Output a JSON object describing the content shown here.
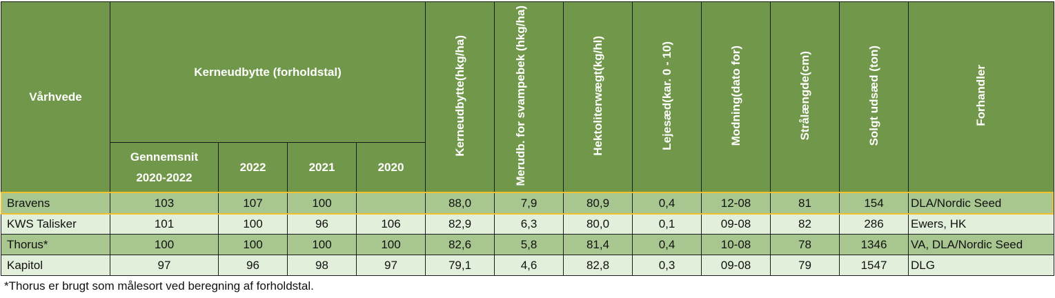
{
  "header": {
    "variety": "Vårhvede",
    "yield_group": "Kerneudbytte (forholdstal)",
    "avg": "Gennemsnit 2020-2022",
    "y2022": "2022",
    "y2021": "2021",
    "y2020": "2020",
    "yield_abs": "Kerneudbytte(hkg/ha)",
    "extra_yield": "Merudb. for svampebek (hkg/ha)",
    "hectoliter": "Hektoliterwægt(kg/hl)",
    "lodging": "Lejesæd(kar. 0 - 10)",
    "maturity": "Modning(dato for)",
    "straw": "Strålængde(cm)",
    "seed_sold": "Solgt udsæd (ton)",
    "dealer": "Forhandler"
  },
  "rows": [
    {
      "name": "Bravens",
      "avg": "103",
      "y2022": "107",
      "y2021": "100",
      "y2020": "",
      "yield": "88,0",
      "extra": "7,9",
      "hl": "80,9",
      "lodging": "0,4",
      "maturity": "12-08",
      "straw": "81",
      "sold": "154",
      "dealer": "DLA/Nordic Seed"
    },
    {
      "name": "KWS Talisker",
      "avg": "101",
      "y2022": "100",
      "y2021": "96",
      "y2020": "106",
      "yield": "82,9",
      "extra": "6,3",
      "hl": "80,0",
      "lodging": "0,1",
      "maturity": "09-08",
      "straw": "82",
      "sold": "286",
      "dealer": "Ewers, HK"
    },
    {
      "name": "Thorus*",
      "avg": "100",
      "y2022": "100",
      "y2021": "100",
      "y2020": "100",
      "yield": "82,6",
      "extra": "5,8",
      "hl": "81,4",
      "lodging": "0,4",
      "maturity": "10-08",
      "straw": "78",
      "sold": "1346",
      "dealer": "VA, DLA/Nordic Seed"
    },
    {
      "name": "Kapitol",
      "avg": "97",
      "y2022": "96",
      "y2021": "98",
      "y2020": "97",
      "yield": "79,1",
      "extra": "4,6",
      "hl": "82,8",
      "lodging": "0,3",
      "maturity": "09-08",
      "straw": "79",
      "sold": "1547",
      "dealer": "DLG"
    }
  ],
  "footnote": "*Thorus er brugt som målesort ved beregning af forholdstal.",
  "colors": {
    "header": "#71984a",
    "row_dark": "#a8c68f",
    "row_light": "#e2efda",
    "highlight": "#f0c12a"
  }
}
